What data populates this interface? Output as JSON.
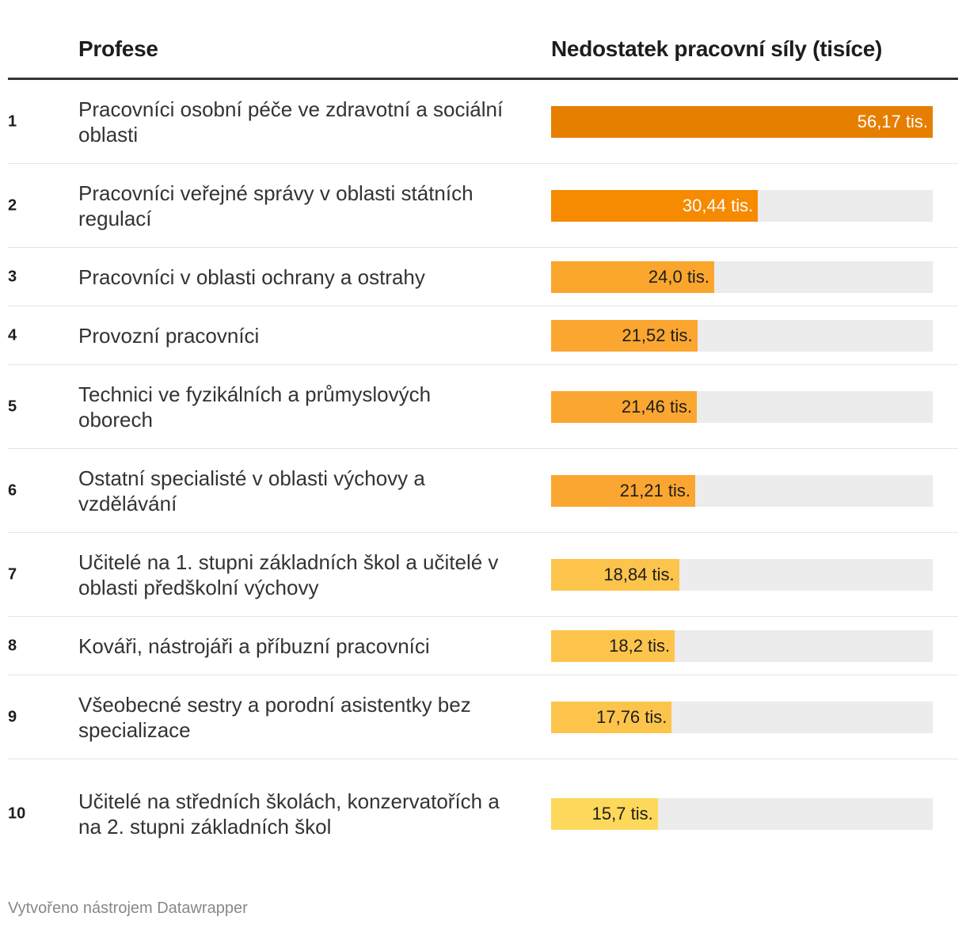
{
  "header": {
    "col_name": "Profese",
    "col_value": "Nedostatek pracovní síly (tisíce)"
  },
  "footer": {
    "credit": "Vytvořeno nástrojem Datawrapper"
  },
  "chart_data": {
    "type": "table",
    "columns": [
      "Profese",
      "Nedostatek pracovní síly (tisíce)"
    ],
    "max_value": 56.17,
    "rows": [
      {
        "rank": "1",
        "name": "Pracovníci osobní péče ve zdravotní a sociální oblasti",
        "value": 56.17,
        "label": "56,17 tis.",
        "color": "#e67e00",
        "label_color": "#ffffff"
      },
      {
        "rank": "2",
        "name": "Pracovníci veřejné správy v oblasti státních regulací",
        "value": 30.44,
        "label": "30,44 tis.",
        "color": "#f68a00",
        "label_color": "#ffffff"
      },
      {
        "rank": "3",
        "name": "Pracovníci v oblasti ochrany a ostrahy",
        "value": 24.0,
        "label": "24,0 tis.",
        "color": "#faa62d",
        "label_color": "#1d1d1d"
      },
      {
        "rank": "4",
        "name": "Provozní pracovníci",
        "value": 21.52,
        "label": "21,52 tis.",
        "color": "#faa630",
        "label_color": "#1d1d1d"
      },
      {
        "rank": "5",
        "name": "Technici ve fyzikálních a průmyslových oborech",
        "value": 21.46,
        "label": "21,46 tis.",
        "color": "#faa630",
        "label_color": "#1d1d1d"
      },
      {
        "rank": "6",
        "name": "Ostatní specialisté v oblasti výchovy a vzdělávání",
        "value": 21.21,
        "label": "21,21 tis.",
        "color": "#faa630",
        "label_color": "#1d1d1d"
      },
      {
        "rank": "7",
        "name": "Učitelé na 1. stupni základních škol a učitelé v oblasti předškolní výchovy",
        "value": 18.84,
        "label": "18,84 tis.",
        "color": "#fdc44c",
        "label_color": "#1d1d1d"
      },
      {
        "rank": "8",
        "name": "Kováři, nástrojáři a příbuzní pracovníci",
        "value": 18.2,
        "label": "18,2 tis.",
        "color": "#fdc44c",
        "label_color": "#1d1d1d"
      },
      {
        "rank": "9",
        "name": "Všeobecné sestry a porodní asistentky bez specializace",
        "value": 17.76,
        "label": "17,76 tis.",
        "color": "#fdc44c",
        "label_color": "#1d1d1d"
      },
      {
        "rank": "10",
        "name": "Učitelé na středních školách, konzervatořích a na 2. stupni základních škol",
        "value": 15.7,
        "label": "15,7 tis.",
        "color": "#fdd85a",
        "label_color": "#1d1d1d"
      }
    ]
  }
}
